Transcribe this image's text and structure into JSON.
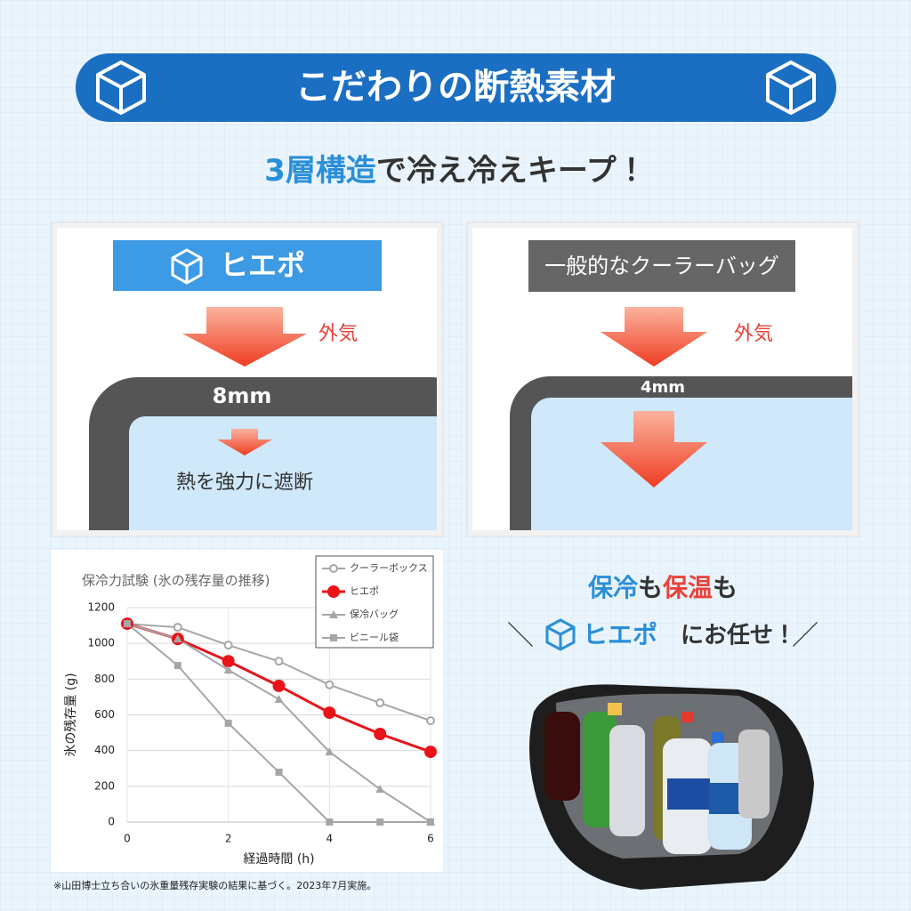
{
  "header": {
    "title": "こだわりの断熱素材"
  },
  "subtitle": {
    "highlight": "3層構造",
    "rest": "で冷え冷えキープ！"
  },
  "panels": [
    {
      "label": "ヒエポ",
      "outside": "外気",
      "thickness": "8mm",
      "caption": "熱を強力に遮断"
    },
    {
      "label": "一般的なクーラーバッグ",
      "outside": "外気",
      "thickness": "4mm"
    }
  ],
  "chart_data": {
    "type": "line",
    "title": "保冷力試験 (氷の残存量の推移)",
    "x_label": "経過時間 (h)",
    "y_label": "氷の残存量 (g)",
    "x": [
      0,
      1,
      2,
      3,
      4,
      5,
      6
    ],
    "xlim": [
      0,
      6
    ],
    "xticks": [
      0,
      2,
      4,
      6
    ],
    "ylim": [
      0,
      1200
    ],
    "yticks": [
      0,
      200,
      400,
      600,
      800,
      1000,
      1200
    ],
    "grid": true,
    "series": [
      {
        "name": "クーラーボックス",
        "color": "#a6a6a6",
        "marker": "open-circle",
        "values": [
          1110,
          1090,
          990,
          900,
          768,
          667,
          567
        ]
      },
      {
        "name": "ヒエポ",
        "color": "#e8141a",
        "marker": "circle",
        "values": [
          1110,
          1025,
          900,
          762,
          612,
          493,
          393
        ]
      },
      {
        "name": "保冷バッグ",
        "color": "#a6a6a6",
        "marker": "triangle",
        "values": [
          1110,
          1025,
          851,
          687,
          393,
          184,
          0
        ]
      },
      {
        "name": "ビニール袋",
        "color": "#a6a6a6",
        "marker": "square",
        "values": [
          1110,
          876,
          553,
          279,
          0,
          0,
          0
        ]
      }
    ]
  },
  "footnote": "※山田博士立ち合いの氷重量残存実験の結果に基づく。2023年7月実施。",
  "promo": {
    "line1": [
      {
        "text": "保冷",
        "color": "#2a8fd8"
      },
      {
        "text": "も",
        "color": "#333333"
      },
      {
        "text": "保温",
        "color": "#e8433a"
      },
      {
        "text": "も",
        "color": "#333333"
      }
    ],
    "brand": "ヒエポ",
    "rest": "にお任せ！"
  }
}
